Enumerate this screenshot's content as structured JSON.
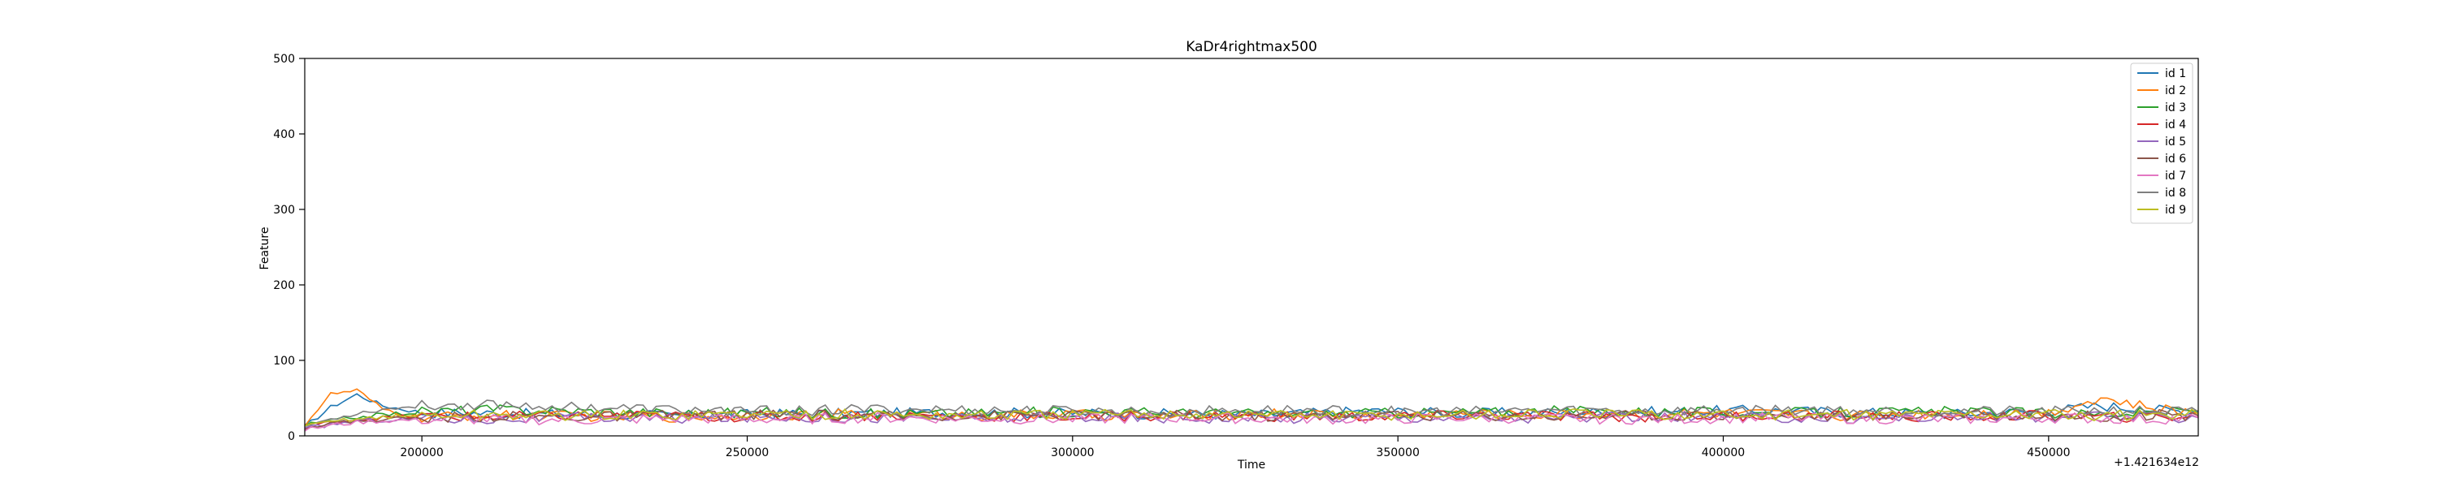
{
  "chart_data": {
    "type": "line",
    "title": "KaDr4rightmax500",
    "xlabel": "Time",
    "ylabel": "Feature",
    "x_offset_label": "+1.421634e12",
    "xlim": [
      182000,
      473000
    ],
    "ylim": [
      0,
      500
    ],
    "x_ticks": [
      200000,
      250000,
      300000,
      350000,
      400000,
      450000
    ],
    "x_tick_labels": [
      "200000",
      "250000",
      "300000",
      "350000",
      "400000",
      "450000"
    ],
    "y_ticks": [
      0,
      100,
      200,
      300,
      400,
      500
    ],
    "y_tick_labels": [
      "0",
      "100",
      "200",
      "300",
      "400",
      "500"
    ],
    "grid": false,
    "legend_position": "top-right",
    "colors": {
      "id 1": "#1f77b4",
      "id 2": "#ff7f0e",
      "id 3": "#2ca02c",
      "id 4": "#d62728",
      "id 5": "#9467bd",
      "id 6": "#8c564b",
      "id 7": "#e377c2",
      "id 8": "#7f7f7f",
      "id 9": "#bcbd22"
    },
    "x": [
      182000,
      186000,
      190000,
      194000,
      200000,
      210000,
      225000,
      240000,
      255000,
      270000,
      285000,
      300000,
      315000,
      330000,
      345000,
      360000,
      375000,
      390000,
      405000,
      420000,
      435000,
      450000,
      458000,
      466000,
      473000
    ],
    "series": [
      {
        "name": "id 1",
        "values": [
          12,
          38,
          55,
          40,
          31,
          30,
          28,
          27,
          29,
          30,
          31,
          30,
          29,
          28,
          33,
          30,
          31,
          32,
          34,
          31,
          29,
          33,
          40,
          35,
          32
        ]
      },
      {
        "name": "id 2",
        "values": [
          15,
          55,
          60,
          35,
          24,
          27,
          26,
          25,
          28,
          29,
          27,
          28,
          26,
          30,
          27,
          29,
          28,
          30,
          29,
          27,
          30,
          31,
          50,
          36,
          30
        ]
      },
      {
        "name": "id 3",
        "values": [
          14,
          20,
          25,
          28,
          32,
          35,
          33,
          30,
          31,
          29,
          30,
          32,
          31,
          29,
          30,
          31,
          33,
          32,
          30,
          31,
          32,
          30,
          29,
          31,
          33
        ]
      },
      {
        "name": "id 4",
        "values": [
          10,
          18,
          22,
          24,
          26,
          25,
          27,
          26,
          25,
          27,
          26,
          25,
          27,
          26,
          25,
          27,
          26,
          25,
          27,
          26,
          25,
          27,
          24,
          26,
          25
        ]
      },
      {
        "name": "id 5",
        "values": [
          9,
          15,
          20,
          21,
          23,
          22,
          24,
          23,
          25,
          24,
          23,
          25,
          24,
          23,
          25,
          24,
          23,
          25,
          24,
          23,
          25,
          24,
          26,
          25,
          24
        ]
      },
      {
        "name": "id 6",
        "values": [
          11,
          17,
          19,
          22,
          24,
          26,
          25,
          27,
          28,
          26,
          27,
          28,
          27,
          26,
          28,
          27,
          26,
          28,
          27,
          26,
          28,
          27,
          26,
          28,
          27
        ]
      },
      {
        "name": "id 7",
        "values": [
          8,
          14,
          18,
          20,
          21,
          22,
          21,
          23,
          22,
          24,
          23,
          22,
          24,
          23,
          22,
          24,
          23,
          22,
          24,
          23,
          22,
          24,
          23,
          22,
          24
        ]
      },
      {
        "name": "id 8",
        "values": [
          13,
          22,
          30,
          35,
          40,
          42,
          38,
          34,
          33,
          35,
          34,
          33,
          32,
          34,
          33,
          32,
          34,
          33,
          35,
          34,
          33,
          32,
          34,
          33,
          32
        ]
      },
      {
        "name": "id 9",
        "values": [
          12,
          19,
          23,
          25,
          27,
          28,
          27,
          28,
          29,
          28,
          27,
          28,
          29,
          28,
          27,
          28,
          29,
          28,
          27,
          28,
          29,
          28,
          27,
          28,
          29
        ]
      }
    ]
  }
}
